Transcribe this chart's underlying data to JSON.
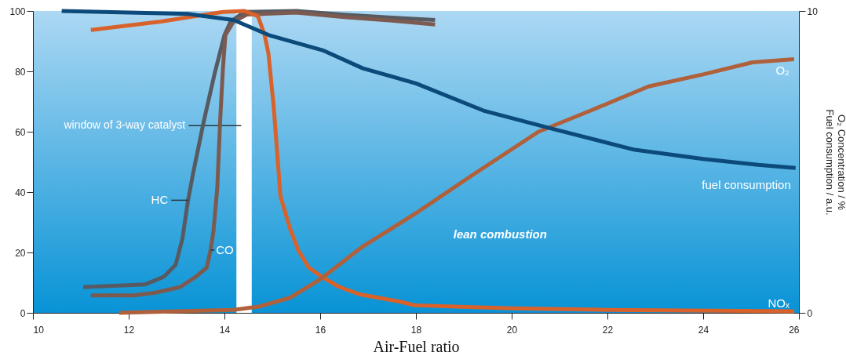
{
  "chart_data": {
    "type": "line",
    "xlabel": "Air-Fuel ratio",
    "y2label": "O₂ Concentration / %\nFuel consumption / a.u.",
    "xlim": [
      10,
      26
    ],
    "xticks": [
      10,
      12,
      14,
      16,
      18,
      20,
      22,
      24,
      26
    ],
    "ylim": [
      0,
      100
    ],
    "yticks": [
      0,
      20,
      40,
      60,
      80,
      100
    ],
    "y2lim": [
      0,
      10
    ],
    "y2ticks": [
      0,
      10
    ],
    "grid": false,
    "marker": "none",
    "line_style": "solid",
    "bands": [
      {
        "axis": "x",
        "from": 14.25,
        "to": 14.57,
        "label": "window of 3-way catalyst",
        "color": "#ffffff"
      }
    ],
    "annotations": [
      "lean combustion"
    ],
    "series": [
      {
        "name": "HC",
        "color": "#575b61",
        "x": [
          11.05,
          12.34,
          12.73,
          12.98,
          13.12,
          13.24,
          13.35,
          13.57,
          13.8,
          14.0,
          14.13,
          14.42,
          15.5,
          16.5,
          17.5,
          18.4
        ],
        "values": [
          8.5,
          9.4,
          11.9,
          15.9,
          24.4,
          37.3,
          46.6,
          63.6,
          79.6,
          92,
          96.5,
          99.7,
          100,
          98.8,
          97.8,
          97
        ]
      },
      {
        "name": "CO",
        "color": "#7d5a50",
        "x": [
          11.21,
          12.11,
          12.56,
          13.07,
          13.4,
          13.63,
          13.71,
          13.77,
          13.85,
          13.91,
          13.97,
          14.02,
          14.19,
          14.47,
          15.5,
          16.5,
          17.5,
          18.4
        ],
        "values": [
          5.8,
          5.8,
          6.7,
          8.5,
          11.9,
          15,
          20.8,
          27,
          41.3,
          63.6,
          81.4,
          92,
          96.5,
          98.8,
          99.5,
          98,
          96.8,
          95.5
        ]
      },
      {
        "name": "NOₓ",
        "color": "#d9622b",
        "x": [
          11.21,
          12.67,
          13.97,
          14.42,
          14.7,
          14.84,
          14.92,
          15.03,
          15.17,
          15.37,
          15.54,
          15.76,
          16.04,
          16.38,
          16.83,
          17.67,
          17.97,
          19.98,
          22,
          25.9
        ],
        "values": [
          93.7,
          96.5,
          99.7,
          100,
          98.3,
          92,
          85.8,
          68,
          38.6,
          27.9,
          20.8,
          15,
          11.9,
          8.7,
          6.1,
          3.7,
          2.5,
          1.5,
          1,
          0.5
        ]
      },
      {
        "name": "O₂",
        "color": "#b0603a",
        "axis": "y2",
        "x": [
          11.8,
          14.19,
          14.7,
          15.37,
          15.99,
          16.89,
          18.0,
          19.12,
          20.56,
          21.65,
          22.86,
          24.0,
          25.03,
          25.9
        ],
        "values": [
          0,
          0.1,
          0.2,
          0.5,
          1.1,
          2.2,
          3.3,
          4.5,
          6.0,
          6.7,
          7.5,
          7.9,
          8.3,
          8.4
        ]
      },
      {
        "name": "fuel consumption",
        "color": "#0b4a7a",
        "axis": "y2",
        "x": [
          10.6,
          13.24,
          14.19,
          14.93,
          16.05,
          16.89,
          18.0,
          19.41,
          20.84,
          22.57,
          24.0,
          25.15,
          25.93
        ],
        "values": [
          10,
          9.9,
          9.7,
          9.2,
          8.7,
          8.1,
          7.6,
          6.7,
          6.1,
          5.4,
          5.1,
          4.9,
          4.8
        ]
      }
    ]
  }
}
